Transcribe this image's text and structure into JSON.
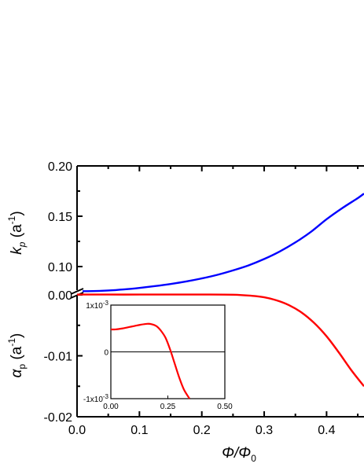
{
  "chart_data": {
    "type": "line",
    "x_axis": {
      "label_main": "Φ/Φ",
      "label_sub": "0",
      "range": [
        0.0,
        0.46
      ],
      "ticks": [
        "0.0",
        "0.1",
        "0.2",
        "0.3",
        "0.4"
      ],
      "tick_values": [
        0.0,
        0.1,
        0.2,
        0.3,
        0.4
      ]
    },
    "upper_panel": {
      "ylabel_main": "k",
      "ylabel_sub": "p",
      "ylabel_unit": " (a",
      "ylabel_sup": "-1",
      "ylabel_close": ")",
      "ylim": [
        0.075,
        0.2
      ],
      "ticks": [
        "0.10",
        "0.15",
        "0.20"
      ],
      "tick_values": [
        0.1,
        0.15,
        0.2
      ],
      "series": {
        "color": "#0000ff",
        "x": [
          0.0,
          0.025,
          0.05,
          0.075,
          0.1,
          0.125,
          0.15,
          0.175,
          0.2,
          0.225,
          0.25,
          0.275,
          0.3,
          0.325,
          0.35,
          0.375,
          0.4,
          0.425,
          0.45,
          0.46
        ],
        "values": [
          0.0755,
          0.0756,
          0.0762,
          0.0773,
          0.0788,
          0.0806,
          0.0827,
          0.0852,
          0.0882,
          0.0918,
          0.0962,
          0.1012,
          0.1075,
          0.115,
          0.124,
          0.1345,
          0.147,
          0.158,
          0.168,
          0.1725
        ]
      }
    },
    "lower_panel": {
      "ylabel_main": "α",
      "ylabel_sub": "p",
      "ylabel_unit": " (a",
      "ylabel_sup": "-1",
      "ylabel_close": ")",
      "ylim": [
        -0.02,
        0.0
      ],
      "ticks": [
        "0.00",
        "-0.01",
        "-0.02"
      ],
      "tick_values": [
        0.0,
        -0.01,
        -0.02
      ],
      "series": {
        "color": "#ff0000",
        "x": [
          0.0,
          0.05,
          0.1,
          0.15,
          0.2,
          0.25,
          0.28,
          0.3,
          0.32,
          0.34,
          0.36,
          0.38,
          0.4,
          0.42,
          0.44,
          0.46
        ],
        "values": [
          5e-05,
          5e-05,
          5e-05,
          6e-05,
          6e-05,
          3e-05,
          -0.00015,
          -0.0004,
          -0.0009,
          -0.0017,
          -0.0029,
          -0.0046,
          -0.0068,
          -0.0095,
          -0.0124,
          -0.015
        ]
      }
    },
    "inset": {
      "xlim": [
        0.0,
        0.5
      ],
      "ylim": [
        -0.001,
        0.001
      ],
      "x_ticks": [
        "0.00",
        "0.25",
        "0.50"
      ],
      "x_tick_values": [
        0.0,
        0.25,
        0.5
      ],
      "y_ticks": [
        {
          "value": 0.001,
          "main": "1x10",
          "sup": "-3"
        },
        {
          "value": 0.0,
          "main": "0",
          "sup": ""
        },
        {
          "value": -0.001,
          "main": "-1x10",
          "sup": "-3"
        }
      ],
      "zero_line": true,
      "series": {
        "color": "#ff0000",
        "x": [
          0.0,
          0.02,
          0.05,
          0.08,
          0.1,
          0.13,
          0.16,
          0.18,
          0.2,
          0.22,
          0.24,
          0.26,
          0.28,
          0.3,
          0.32,
          0.345
        ],
        "values": [
          0.00048,
          0.00048,
          0.0005,
          0.00053,
          0.00055,
          0.00058,
          0.0006,
          0.00059,
          0.00055,
          0.00045,
          0.0003,
          5e-05,
          -0.00025,
          -0.00055,
          -0.0008,
          -0.001
        ]
      }
    }
  }
}
